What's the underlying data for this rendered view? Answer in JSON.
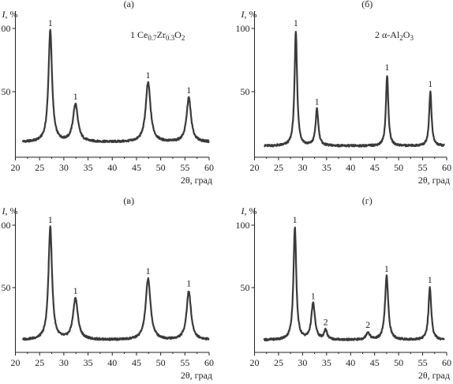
{
  "chart_data": [
    {
      "type": "line",
      "panel_label": "(а)",
      "title": "1 Ce0.7Zr0.3O2",
      "title_parts": {
        "prefix": "1 Ce",
        "s1": "0.7",
        "mid": "Zr",
        "s2": "0.3",
        "mid2": "O",
        "s3": "2"
      },
      "xlabel": "2θ, град",
      "ylabel": "I, %",
      "xlim": [
        20,
        60
      ],
      "ylim": [
        0,
        100
      ],
      "xticks": [
        "20",
        "25",
        "30",
        "35",
        "40",
        "45",
        "50",
        "55",
        "60"
      ],
      "yticks": [
        "50",
        "100"
      ],
      "baseline": 10,
      "peaks": [
        {
          "x": 27.2,
          "y": 98,
          "w": 0.45,
          "label": "1"
        },
        {
          "x": 32.4,
          "y": 40,
          "w": 0.6,
          "label": "1"
        },
        {
          "x": 47.4,
          "y": 57,
          "w": 0.6,
          "label": "1"
        },
        {
          "x": 55.8,
          "y": 45,
          "w": 0.55,
          "label": "1"
        }
      ],
      "x_start": 21.5,
      "x_end": 60.0,
      "grid": false
    },
    {
      "type": "line",
      "panel_label": "(б)",
      "title": "2 α-Al2O3",
      "title_parts": {
        "prefix": "2 α-Al",
        "s1": "2",
        "mid": "O",
        "s2": "3",
        "mid2": "",
        "s3": ""
      },
      "xlabel": "2θ, град",
      "ylabel": "I, %",
      "xlim": [
        20,
        60
      ],
      "ylim": [
        0,
        100
      ],
      "xticks": [
        "20",
        "25",
        "30",
        "35",
        "40",
        "45",
        "50",
        "55",
        "60"
      ],
      "yticks": [
        "50",
        "100"
      ],
      "baseline": 7,
      "peaks": [
        {
          "x": 28.6,
          "y": 98,
          "w": 0.32,
          "label": "1"
        },
        {
          "x": 33.0,
          "y": 36,
          "w": 0.35,
          "label": "1"
        },
        {
          "x": 47.6,
          "y": 63,
          "w": 0.3,
          "label": "1"
        },
        {
          "x": 56.6,
          "y": 50,
          "w": 0.3,
          "label": "1"
        }
      ],
      "x_start": 22.0,
      "x_end": 59.5,
      "grid": false
    },
    {
      "type": "line",
      "panel_label": "(в)",
      "title": "",
      "xlabel": "2θ, град",
      "ylabel": "I, %",
      "xlim": [
        20,
        60
      ],
      "ylim": [
        0,
        100
      ],
      "xticks": [
        "20",
        "25",
        "30",
        "35",
        "40",
        "45",
        "50",
        "55",
        "60"
      ],
      "yticks": [
        "50",
        "100"
      ],
      "baseline": 8,
      "peaks": [
        {
          "x": 27.2,
          "y": 98,
          "w": 0.45,
          "label": "1"
        },
        {
          "x": 32.4,
          "y": 41,
          "w": 0.6,
          "label": "1"
        },
        {
          "x": 47.4,
          "y": 57,
          "w": 0.6,
          "label": "1"
        },
        {
          "x": 55.8,
          "y": 47,
          "w": 0.55,
          "label": "1"
        }
      ],
      "x_start": 21.5,
      "x_end": 60.0,
      "grid": false
    },
    {
      "type": "line",
      "panel_label": "(г)",
      "title": "",
      "xlabel": "2θ, град",
      "ylabel": "I, %",
      "xlim": [
        20,
        60
      ],
      "ylim": [
        0,
        100
      ],
      "xticks": [
        "20",
        "25",
        "30",
        "35",
        "40",
        "45",
        "50",
        "55",
        "60"
      ],
      "yticks": [
        "50",
        "100"
      ],
      "baseline": 8,
      "peaks": [
        {
          "x": 28.4,
          "y": 98,
          "w": 0.35,
          "label": "1"
        },
        {
          "x": 32.2,
          "y": 37,
          "w": 0.45,
          "label": "1"
        },
        {
          "x": 34.8,
          "y": 16,
          "w": 0.35,
          "label": "2"
        },
        {
          "x": 43.6,
          "y": 14,
          "w": 0.45,
          "label": "2"
        },
        {
          "x": 47.5,
          "y": 59,
          "w": 0.4,
          "label": "1"
        },
        {
          "x": 56.5,
          "y": 50,
          "w": 0.35,
          "label": "1"
        }
      ],
      "x_start": 22.0,
      "x_end": 59.5,
      "grid": false
    }
  ]
}
